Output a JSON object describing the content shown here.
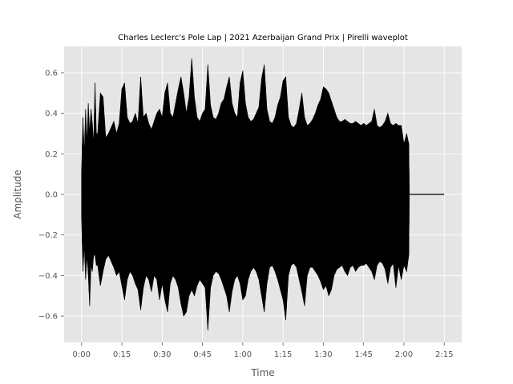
{
  "chart_data": {
    "type": "area",
    "title": "Charles Leclerc's Pole Lap | 2021 Azerbaijan Grand Prix | Pirelli waveplot",
    "xlabel": "Time",
    "ylabel": "Amplitude",
    "xlim": [
      -6.5,
      141.5
    ],
    "ylim": [
      -0.73,
      0.73
    ],
    "xticks": [
      {
        "value": 0,
        "label": "0:00"
      },
      {
        "value": 15,
        "label": "0:15"
      },
      {
        "value": 30,
        "label": "0:30"
      },
      {
        "value": 45,
        "label": "0:45"
      },
      {
        "value": 60,
        "label": "1:00"
      },
      {
        "value": 75,
        "label": "1:15"
      },
      {
        "value": 90,
        "label": "1:30"
      },
      {
        "value": 105,
        "label": "1:45"
      },
      {
        "value": 120,
        "label": "2:00"
      },
      {
        "value": 135,
        "label": "2:15"
      }
    ],
    "yticks": [
      {
        "value": 0.6,
        "label": "0.6"
      },
      {
        "value": 0.4,
        "label": "0.4"
      },
      {
        "value": 0.2,
        "label": "0.2"
      },
      {
        "value": 0.0,
        "label": "0.0"
      },
      {
        "value": -0.2,
        "label": "−0.2"
      },
      {
        "value": -0.4,
        "label": "−0.4"
      },
      {
        "value": -0.6,
        "label": "−0.6"
      }
    ],
    "grid": true,
    "colors": {
      "plot_bg": "#e5e5e5",
      "grid": "#ffffff",
      "waveform": "#000000",
      "text": "#555555"
    },
    "series": [
      {
        "time": [
          0,
          0.5,
          1,
          1.5,
          2,
          2.5,
          3,
          3.5,
          4,
          4.5,
          5,
          5.5,
          6,
          7,
          8,
          9,
          10,
          11,
          12,
          13,
          14,
          15,
          16,
          17,
          18,
          19,
          20,
          21,
          22,
          23,
          24,
          25,
          26,
          27,
          28,
          29,
          30,
          31,
          32,
          33,
          34,
          35,
          36,
          37,
          38,
          39,
          40,
          41,
          42,
          43,
          44,
          45,
          46,
          47,
          48,
          49,
          50,
          51,
          52,
          53,
          54,
          55,
          56,
          57,
          58,
          59,
          60,
          61,
          62,
          63,
          64,
          65,
          66,
          67,
          68,
          69,
          70,
          71,
          72,
          73,
          74,
          75,
          76,
          77,
          78,
          79,
          80,
          81,
          82,
          83,
          84,
          85,
          86,
          87,
          88,
          89,
          90,
          91,
          92,
          93,
          94,
          95,
          96,
          97,
          98,
          99,
          100,
          101,
          102,
          103,
          104,
          105,
          106,
          107,
          108,
          109,
          110,
          111,
          112,
          113,
          114,
          115,
          116,
          117,
          118,
          119,
          120,
          121,
          121.8,
          122,
          135
        ],
        "upper": [
          0.12,
          0.38,
          0.2,
          0.42,
          0.25,
          0.45,
          0.3,
          0.42,
          0.35,
          0.25,
          0.55,
          0.3,
          0.3,
          0.5,
          0.48,
          0.28,
          0.3,
          0.33,
          0.36,
          0.3,
          0.35,
          0.52,
          0.55,
          0.38,
          0.35,
          0.36,
          0.4,
          0.35,
          0.58,
          0.38,
          0.4,
          0.35,
          0.32,
          0.36,
          0.4,
          0.42,
          0.38,
          0.5,
          0.55,
          0.4,
          0.38,
          0.45,
          0.52,
          0.58,
          0.5,
          0.4,
          0.48,
          0.67,
          0.48,
          0.38,
          0.36,
          0.4,
          0.42,
          0.64,
          0.44,
          0.38,
          0.37,
          0.4,
          0.45,
          0.47,
          0.53,
          0.58,
          0.45,
          0.4,
          0.38,
          0.55,
          0.61,
          0.45,
          0.38,
          0.36,
          0.37,
          0.4,
          0.43,
          0.57,
          0.64,
          0.42,
          0.36,
          0.35,
          0.38,
          0.44,
          0.48,
          0.56,
          0.58,
          0.38,
          0.34,
          0.33,
          0.35,
          0.42,
          0.5,
          0.38,
          0.34,
          0.35,
          0.37,
          0.4,
          0.44,
          0.47,
          0.53,
          0.52,
          0.5,
          0.46,
          0.42,
          0.38,
          0.36,
          0.36,
          0.37,
          0.36,
          0.35,
          0.35,
          0.36,
          0.35,
          0.34,
          0.35,
          0.34,
          0.35,
          0.36,
          0.42,
          0.34,
          0.33,
          0.34,
          0.36,
          0.4,
          0.35,
          0.34,
          0.35,
          0.34,
          0.34,
          0.25,
          0.3,
          0.25,
          0.0,
          0.0
        ],
        "lower": [
          -0.12,
          -0.38,
          -0.25,
          -0.42,
          -0.3,
          -0.4,
          -0.55,
          -0.35,
          -0.38,
          -0.3,
          -0.3,
          -0.35,
          -0.35,
          -0.45,
          -0.38,
          -0.32,
          -0.3,
          -0.33,
          -0.36,
          -0.4,
          -0.38,
          -0.45,
          -0.52,
          -0.42,
          -0.38,
          -0.4,
          -0.44,
          -0.47,
          -0.57,
          -0.46,
          -0.4,
          -0.42,
          -0.48,
          -0.4,
          -0.42,
          -0.52,
          -0.44,
          -0.52,
          -0.58,
          -0.44,
          -0.4,
          -0.42,
          -0.46,
          -0.54,
          -0.6,
          -0.58,
          -0.5,
          -0.47,
          -0.5,
          -0.45,
          -0.42,
          -0.44,
          -0.46,
          -0.67,
          -0.46,
          -0.4,
          -0.38,
          -0.39,
          -0.42,
          -0.46,
          -0.5,
          -0.58,
          -0.48,
          -0.42,
          -0.4,
          -0.44,
          -0.52,
          -0.5,
          -0.42,
          -0.38,
          -0.36,
          -0.38,
          -0.42,
          -0.5,
          -0.58,
          -0.44,
          -0.36,
          -0.35,
          -0.38,
          -0.42,
          -0.47,
          -0.52,
          -0.62,
          -0.4,
          -0.35,
          -0.34,
          -0.36,
          -0.42,
          -0.48,
          -0.55,
          -0.4,
          -0.36,
          -0.36,
          -0.38,
          -0.4,
          -0.43,
          -0.47,
          -0.45,
          -0.5,
          -0.47,
          -0.4,
          -0.37,
          -0.36,
          -0.35,
          -0.38,
          -0.4,
          -0.36,
          -0.35,
          -0.38,
          -0.36,
          -0.35,
          -0.35,
          -0.34,
          -0.36,
          -0.38,
          -0.42,
          -0.35,
          -0.33,
          -0.34,
          -0.37,
          -0.44,
          -0.36,
          -0.34,
          -0.46,
          -0.35,
          -0.42,
          -0.35,
          -0.38,
          -0.3,
          0.0,
          0.0
        ]
      }
    ]
  }
}
